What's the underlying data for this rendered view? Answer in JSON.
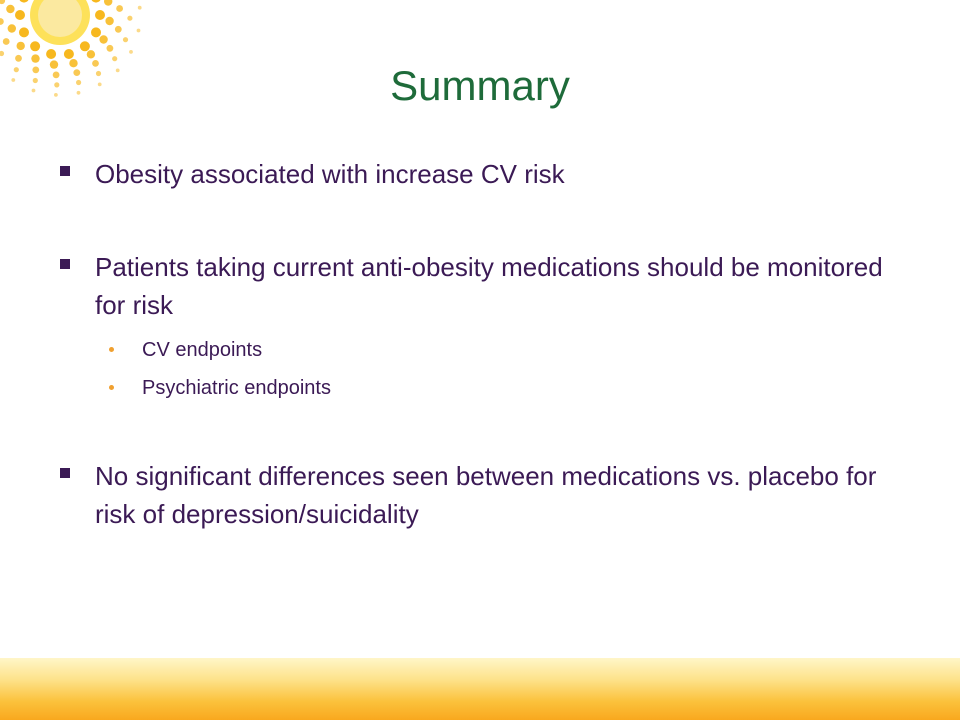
{
  "slide": {
    "title": "Summary",
    "bullets": [
      {
        "text": "Obesity associated with increase CV risk"
      },
      {
        "text": "Patients taking current anti-obesity medications should be monitored for risk",
        "sub": [
          "CV endpoints",
          "Psychiatric endpoints"
        ]
      },
      {
        "text": "No significant differences seen between medications vs. placebo for risk of depression/suicidality"
      }
    ]
  },
  "colors": {
    "title": "#1e6b3a",
    "body_text": "#3b1a55",
    "sub_bullet": "#f0a030",
    "sun": "#f7b81e",
    "band": "#f9a81e"
  },
  "icons": {
    "logo": "sun-logo-icon",
    "bullet": "square-bullet-icon",
    "sub_bullet": "dot-bullet-icon"
  }
}
